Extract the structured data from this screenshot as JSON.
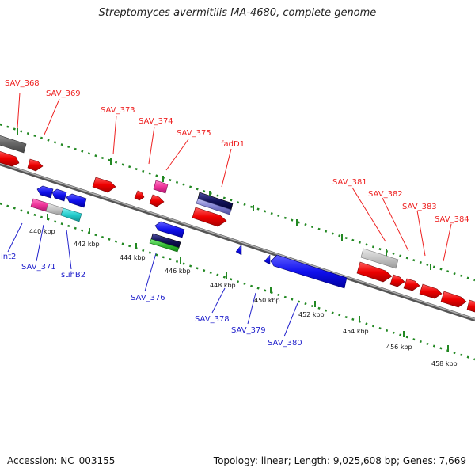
{
  "title": "Streptomyces avermitilis MA-4680, complete genome",
  "footer": {
    "accession_label": "Accession:",
    "accession": "NC_003155",
    "topology_label": "Topology:",
    "topology": "linear",
    "length_label": "Length:",
    "length": "9,025,608 bp",
    "genes_label": "Genes:",
    "genes": "7,669"
  },
  "colors": {
    "forward_label": "#dd0000",
    "reverse_label": "#0000cc",
    "backbone": "#888888",
    "ticks": "#228822"
  },
  "ticks": [
    "440 kbp",
    "442 kbp",
    "444 kbp",
    "446 kbp",
    "448 kbp",
    "450 kbp",
    "452 kbp",
    "454 kbp",
    "456 kbp",
    "458 kbp"
  ],
  "forward_labels": [
    "SAV_368",
    "SAV_369",
    "SAV_373",
    "SAV_374",
    "SAV_375",
    "fadD1",
    "SAV_381",
    "SAV_382",
    "SAV_383",
    "SAV_384"
  ],
  "reverse_labels": [
    "int2",
    "SAV_371",
    "suhB2",
    "SAV_376",
    "SAV_378",
    "SAV_379",
    "SAV_380"
  ]
}
